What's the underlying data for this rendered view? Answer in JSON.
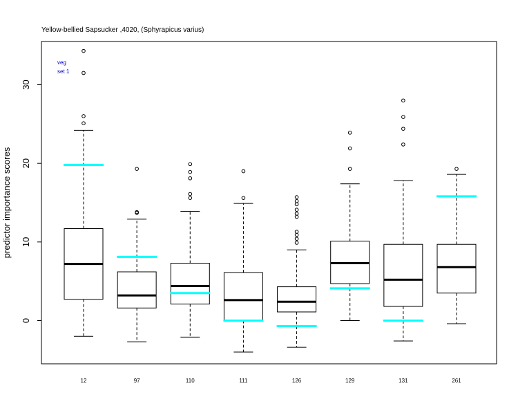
{
  "chart_data": {
    "type": "boxplot",
    "title": "Yellow-bellied Sapsucker ,4020, (Sphyrapicus varius)",
    "ylabel": "predictor importance scores",
    "xlabel": "",
    "ylim": [
      -5.5,
      35.5
    ],
    "yticks": [
      0,
      10,
      20,
      30
    ],
    "grid": false,
    "legend": {
      "placement": "top-left",
      "lines": [
        "veg",
        "set 1"
      ],
      "color": "#0000cc"
    },
    "box_color": "#000000",
    "reference_color": "#00ffff",
    "categories": [
      "12",
      "97",
      "110",
      "111",
      "126",
      "129",
      "131",
      "261"
    ],
    "boxes": [
      {
        "label": "12",
        "whisker_low": -2.0,
        "q1": 2.7,
        "median": 7.2,
        "q3": 11.7,
        "whisker_high": 24.2,
        "outliers": [
          25.1,
          26.0,
          31.5,
          34.3
        ],
        "reference": 19.8
      },
      {
        "label": "97",
        "whisker_low": -2.7,
        "q1": 1.6,
        "median": 3.2,
        "q3": 6.2,
        "whisker_high": 12.9,
        "outliers": [
          13.7,
          13.8,
          19.3
        ],
        "reference": 8.1
      },
      {
        "label": "110",
        "whisker_low": -2.1,
        "q1": 2.1,
        "median": 4.4,
        "q3": 7.3,
        "whisker_high": 13.9,
        "outliers": [
          15.6,
          16.1,
          18.1,
          18.9,
          19.9
        ],
        "reference": 3.5
      },
      {
        "label": "111",
        "whisker_low": -4.0,
        "q1": 0.0,
        "median": 2.6,
        "q3": 6.1,
        "whisker_high": 14.9,
        "outliers": [
          15.6,
          19.0
        ],
        "reference": 0.0
      },
      {
        "label": "126",
        "whisker_low": -3.4,
        "q1": 1.1,
        "median": 2.4,
        "q3": 4.3,
        "whisker_high": 9.0,
        "outliers": [
          9.9,
          10.4,
          10.9,
          11.3,
          13.2,
          13.6,
          14.1,
          14.8,
          15.2,
          15.7
        ],
        "reference": -0.7
      },
      {
        "label": "129",
        "whisker_low": 0.0,
        "q1": 4.7,
        "median": 7.3,
        "q3": 10.1,
        "whisker_high": 17.4,
        "outliers": [
          19.3,
          21.9,
          23.9
        ],
        "reference": 4.1
      },
      {
        "label": "131",
        "whisker_low": -2.6,
        "q1": 1.8,
        "median": 5.2,
        "q3": 9.7,
        "whisker_high": 17.8,
        "outliers": [
          22.4,
          24.4,
          25.9,
          28.0
        ],
        "reference": 0.0
      },
      {
        "label": "261",
        "whisker_low": -0.4,
        "q1": 3.5,
        "median": 6.8,
        "q3": 9.7,
        "whisker_high": 18.6,
        "outliers": [
          19.3
        ],
        "reference": 15.8
      }
    ]
  }
}
